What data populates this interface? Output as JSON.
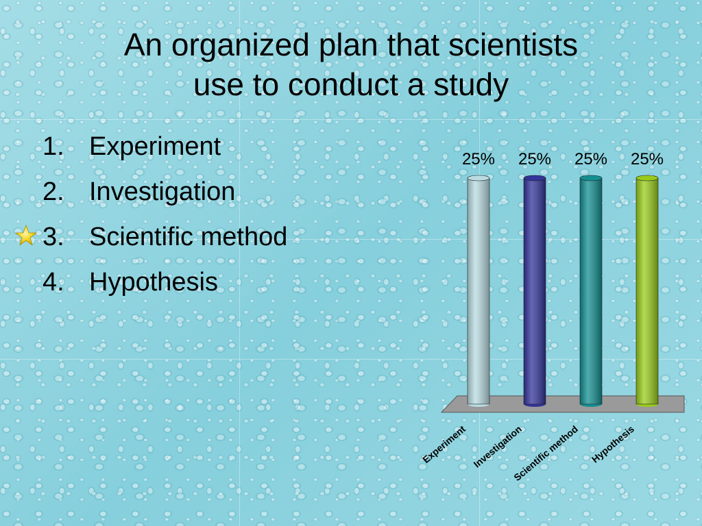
{
  "slide": {
    "title_lines": [
      "An organized plan that scientists",
      "use to conduct a study"
    ],
    "options": [
      {
        "number": "1.",
        "label": "Experiment"
      },
      {
        "number": "2.",
        "label": "Investigation"
      },
      {
        "number": "3.",
        "label": "Scientific method"
      },
      {
        "number": "4.",
        "label": "Hypothesis"
      }
    ],
    "correct_marker_icon": "star-icon",
    "correct_option_index": 2
  },
  "chart_data": {
    "type": "bar",
    "categories": [
      "Experiment",
      "Investigation",
      "Scientific method",
      "Hypothesis"
    ],
    "values": [
      25,
      25,
      25,
      25
    ],
    "data_labels": [
      "25%",
      "25%",
      "25%",
      "25%"
    ],
    "colors": [
      "#b9dce2",
      "#33349a",
      "#138f91",
      "#99cc1a"
    ],
    "ylim": [
      0,
      25
    ],
    "grid": false,
    "legend": "none"
  }
}
